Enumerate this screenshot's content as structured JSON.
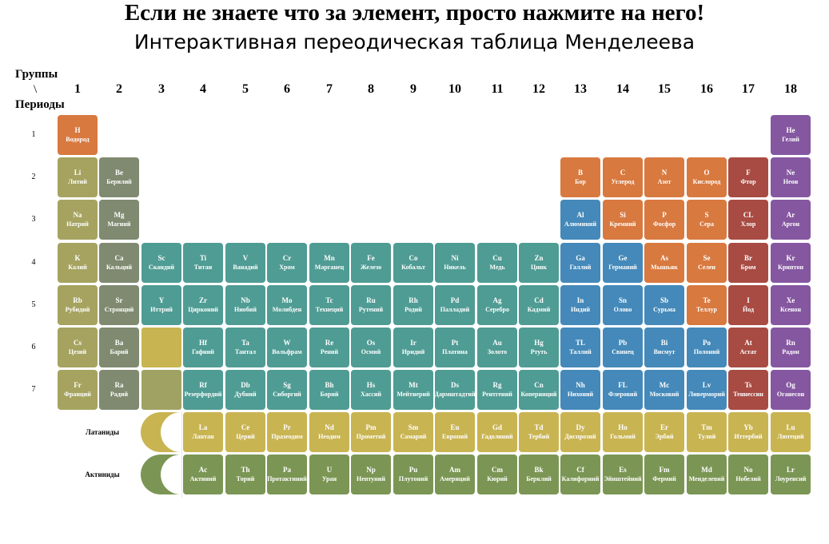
{
  "header": {
    "title": "Если не знаете что за элемент, просто нажмите на него!",
    "subtitle": "Интерактивная переодическая таблица Менделеева"
  },
  "table": {
    "corner": {
      "groups": "Группы",
      "slash": "\\",
      "periods": "Периоды"
    },
    "groups": [
      "1",
      "2",
      "3",
      "4",
      "5",
      "6",
      "7",
      "8",
      "9",
      "10",
      "11",
      "12",
      "13",
      "14",
      "15",
      "16",
      "17",
      "18"
    ],
    "periods": [
      "1",
      "2",
      "3",
      "4",
      "5",
      "6",
      "7"
    ],
    "series_labels": {
      "lanthanides": "Латаниды",
      "actinides": "Актиниды"
    }
  },
  "colors": {
    "alkali": "#a5a35f",
    "alkaline_earth": "#7f8a70",
    "transition": "#4f9c94",
    "post_transition": "#4489b9",
    "nonmetal": "#d8793f",
    "halogen": "#a84b43",
    "noble_gas": "#8557a1",
    "lanthanide": "#c9b452",
    "actinide": "#7b9654",
    "lanthanide_slot": "#c8b450",
    "actinide_slot": "#a0a264"
  },
  "elements": [
    {
      "sym": "H",
      "name": "Водород",
      "group": 1,
      "period": 1,
      "cat": "nonmetal"
    },
    {
      "sym": "He",
      "name": "Гелий",
      "group": 18,
      "period": 1,
      "cat": "noble_gas"
    },
    {
      "sym": "Li",
      "name": "Литий",
      "group": 1,
      "period": 2,
      "cat": "alkali"
    },
    {
      "sym": "Be",
      "name": "Берилий",
      "group": 2,
      "period": 2,
      "cat": "alkaline_earth"
    },
    {
      "sym": "B",
      "name": "Бор",
      "group": 13,
      "period": 2,
      "cat": "nonmetal"
    },
    {
      "sym": "C",
      "name": "Углерод",
      "group": 14,
      "period": 2,
      "cat": "nonmetal"
    },
    {
      "sym": "N",
      "name": "Азот",
      "group": 15,
      "period": 2,
      "cat": "nonmetal"
    },
    {
      "sym": "O",
      "name": "Кислород",
      "group": 16,
      "period": 2,
      "cat": "nonmetal"
    },
    {
      "sym": "F",
      "name": "Фтор",
      "group": 17,
      "period": 2,
      "cat": "halogen"
    },
    {
      "sym": "Ne",
      "name": "Неон",
      "group": 18,
      "period": 2,
      "cat": "noble_gas"
    },
    {
      "sym": "Na",
      "name": "Натрий",
      "group": 1,
      "period": 3,
      "cat": "alkali"
    },
    {
      "sym": "Mg",
      "name": "Магний",
      "group": 2,
      "period": 3,
      "cat": "alkaline_earth"
    },
    {
      "sym": "Al",
      "name": "Алюминий",
      "group": 13,
      "period": 3,
      "cat": "post_transition"
    },
    {
      "sym": "Si",
      "name": "Кремний",
      "group": 14,
      "period": 3,
      "cat": "nonmetal"
    },
    {
      "sym": "P",
      "name": "Фосфор",
      "group": 15,
      "period": 3,
      "cat": "nonmetal"
    },
    {
      "sym": "S",
      "name": "Сера",
      "group": 16,
      "period": 3,
      "cat": "nonmetal"
    },
    {
      "sym": "CL",
      "name": "Хлор",
      "group": 17,
      "period": 3,
      "cat": "halogen"
    },
    {
      "sym": "Ar",
      "name": "Аргон",
      "group": 18,
      "period": 3,
      "cat": "noble_gas"
    },
    {
      "sym": "K",
      "name": "Калий",
      "group": 1,
      "period": 4,
      "cat": "alkali"
    },
    {
      "sym": "Ca",
      "name": "Кальций",
      "group": 2,
      "period": 4,
      "cat": "alkaline_earth"
    },
    {
      "sym": "Sc",
      "name": "Скандий",
      "group": 3,
      "period": 4,
      "cat": "transition"
    },
    {
      "sym": "Ti",
      "name": "Титан",
      "group": 4,
      "period": 4,
      "cat": "transition"
    },
    {
      "sym": "V",
      "name": "Ванадий",
      "group": 5,
      "period": 4,
      "cat": "transition"
    },
    {
      "sym": "Cr",
      "name": "Хром",
      "group": 6,
      "period": 4,
      "cat": "transition"
    },
    {
      "sym": "Mn",
      "name": "Марганец",
      "group": 7,
      "period": 4,
      "cat": "transition"
    },
    {
      "sym": "Fe",
      "name": "Железо",
      "group": 8,
      "period": 4,
      "cat": "transition"
    },
    {
      "sym": "Co",
      "name": "Кобальт",
      "group": 9,
      "period": 4,
      "cat": "transition"
    },
    {
      "sym": "Ni",
      "name": "Никель",
      "group": 10,
      "period": 4,
      "cat": "transition"
    },
    {
      "sym": "Cu",
      "name": "Медь",
      "group": 11,
      "period": 4,
      "cat": "transition"
    },
    {
      "sym": "Zn",
      "name": "Цинк",
      "group": 12,
      "period": 4,
      "cat": "transition"
    },
    {
      "sym": "Ga",
      "name": "Галлий",
      "group": 13,
      "period": 4,
      "cat": "post_transition"
    },
    {
      "sym": "Ge",
      "name": "Германий",
      "group": 14,
      "period": 4,
      "cat": "post_transition"
    },
    {
      "sym": "As",
      "name": "Мышьяк",
      "group": 15,
      "period": 4,
      "cat": "nonmetal"
    },
    {
      "sym": "Se",
      "name": "Селен",
      "group": 16,
      "period": 4,
      "cat": "nonmetal"
    },
    {
      "sym": "Br",
      "name": "Бром",
      "group": 17,
      "period": 4,
      "cat": "halogen"
    },
    {
      "sym": "Kr",
      "name": "Криптон",
      "group": 18,
      "period": 4,
      "cat": "noble_gas"
    },
    {
      "sym": "Rb",
      "name": "Рубидий",
      "group": 1,
      "period": 5,
      "cat": "alkali"
    },
    {
      "sym": "Sr",
      "name": "Стронций",
      "group": 2,
      "period": 5,
      "cat": "alkaline_earth"
    },
    {
      "sym": "Y",
      "name": "Иттрий",
      "group": 3,
      "period": 5,
      "cat": "transition"
    },
    {
      "sym": "Zr",
      "name": "Цирконий",
      "group": 4,
      "period": 5,
      "cat": "transition"
    },
    {
      "sym": "Nb",
      "name": "Ниобий",
      "group": 5,
      "period": 5,
      "cat": "transition"
    },
    {
      "sym": "Mo",
      "name": "Молибден",
      "group": 6,
      "period": 5,
      "cat": "transition"
    },
    {
      "sym": "Tc",
      "name": "Технеций",
      "group": 7,
      "period": 5,
      "cat": "transition"
    },
    {
      "sym": "Ru",
      "name": "Рутений",
      "group": 8,
      "period": 5,
      "cat": "transition"
    },
    {
      "sym": "Rh",
      "name": "Родий",
      "group": 9,
      "period": 5,
      "cat": "transition"
    },
    {
      "sym": "Pd",
      "name": "Палладий",
      "group": 10,
      "period": 5,
      "cat": "transition"
    },
    {
      "sym": "Ag",
      "name": "Серебро",
      "group": 11,
      "period": 5,
      "cat": "transition"
    },
    {
      "sym": "Cd",
      "name": "Кадмий",
      "group": 12,
      "period": 5,
      "cat": "transition"
    },
    {
      "sym": "In",
      "name": "Индий",
      "group": 13,
      "period": 5,
      "cat": "post_transition"
    },
    {
      "sym": "Sn",
      "name": "Олово",
      "group": 14,
      "period": 5,
      "cat": "post_transition"
    },
    {
      "sym": "Sb",
      "name": "Сурьма",
      "group": 15,
      "period": 5,
      "cat": "post_transition"
    },
    {
      "sym": "Te",
      "name": "Теллур",
      "group": 16,
      "period": 5,
      "cat": "nonmetal"
    },
    {
      "sym": "I",
      "name": "Йод",
      "group": 17,
      "period": 5,
      "cat": "halogen"
    },
    {
      "sym": "Xe",
      "name": "Ксенон",
      "group": 18,
      "period": 5,
      "cat": "noble_gas"
    },
    {
      "sym": "Cs",
      "name": "Цезий",
      "group": 1,
      "period": 6,
      "cat": "alkali"
    },
    {
      "sym": "Ba",
      "name": "Барий",
      "group": 2,
      "period": 6,
      "cat": "alkaline_earth"
    },
    {
      "sym": "Hf",
      "name": "Гафний",
      "group": 4,
      "period": 6,
      "cat": "transition"
    },
    {
      "sym": "Ta",
      "name": "Тантал",
      "group": 5,
      "period": 6,
      "cat": "transition"
    },
    {
      "sym": "W",
      "name": "Вольфрам",
      "group": 6,
      "period": 6,
      "cat": "transition"
    },
    {
      "sym": "Re",
      "name": "Рений",
      "group": 7,
      "period": 6,
      "cat": "transition"
    },
    {
      "sym": "Os",
      "name": "Осмий",
      "group": 8,
      "period": 6,
      "cat": "transition"
    },
    {
      "sym": "Ir",
      "name": "Иридий",
      "group": 9,
      "period": 6,
      "cat": "transition"
    },
    {
      "sym": "Pt",
      "name": "Платина",
      "group": 10,
      "period": 6,
      "cat": "transition"
    },
    {
      "sym": "Au",
      "name": "Золото",
      "group": 11,
      "period": 6,
      "cat": "transition"
    },
    {
      "sym": "Hg",
      "name": "Ртуть",
      "group": 12,
      "period": 6,
      "cat": "transition"
    },
    {
      "sym": "TL",
      "name": "Таллий",
      "group": 13,
      "period": 6,
      "cat": "post_transition"
    },
    {
      "sym": "Pb",
      "name": "Свинец",
      "group": 14,
      "period": 6,
      "cat": "post_transition"
    },
    {
      "sym": "Bi",
      "name": "Висмут",
      "group": 15,
      "period": 6,
      "cat": "post_transition"
    },
    {
      "sym": "Po",
      "name": "Полоний",
      "group": 16,
      "period": 6,
      "cat": "post_transition"
    },
    {
      "sym": "At",
      "name": "Астат",
      "group": 17,
      "period": 6,
      "cat": "halogen"
    },
    {
      "sym": "Rn",
      "name": "Радон",
      "group": 18,
      "period": 6,
      "cat": "noble_gas"
    },
    {
      "sym": "Fr",
      "name": "Франций",
      "group": 1,
      "period": 7,
      "cat": "alkali"
    },
    {
      "sym": "Ra",
      "name": "Радий",
      "group": 2,
      "period": 7,
      "cat": "alkaline_earth"
    },
    {
      "sym": "Rf",
      "name": "Резерфордий",
      "group": 4,
      "period": 7,
      "cat": "transition"
    },
    {
      "sym": "Db",
      "name": "Дубний",
      "group": 5,
      "period": 7,
      "cat": "transition"
    },
    {
      "sym": "Sg",
      "name": "Сиборгий",
      "group": 6,
      "period": 7,
      "cat": "transition"
    },
    {
      "sym": "Bh",
      "name": "Борий",
      "group": 7,
      "period": 7,
      "cat": "transition"
    },
    {
      "sym": "Hs",
      "name": "Хассий",
      "group": 8,
      "period": 7,
      "cat": "transition"
    },
    {
      "sym": "Mt",
      "name": "Мейтнерий",
      "group": 9,
      "period": 7,
      "cat": "transition"
    },
    {
      "sym": "Ds",
      "name": "Дармштадтий",
      "group": 10,
      "period": 7,
      "cat": "transition"
    },
    {
      "sym": "Rg",
      "name": "Рентгений",
      "group": 11,
      "period": 7,
      "cat": "transition"
    },
    {
      "sym": "Cn",
      "name": "Коперниций",
      "group": 12,
      "period": 7,
      "cat": "transition"
    },
    {
      "sym": "Nh",
      "name": "Нихоний",
      "group": 13,
      "period": 7,
      "cat": "post_transition"
    },
    {
      "sym": "FL",
      "name": "Флеровий",
      "group": 14,
      "period": 7,
      "cat": "post_transition"
    },
    {
      "sym": "Mc",
      "name": "Московий",
      "group": 15,
      "period": 7,
      "cat": "post_transition"
    },
    {
      "sym": "Lv",
      "name": "Ливерморий",
      "group": 16,
      "period": 7,
      "cat": "post_transition"
    },
    {
      "sym": "Ts",
      "name": "Теннессин",
      "group": 17,
      "period": 7,
      "cat": "halogen"
    },
    {
      "sym": "Og",
      "name": "Оганесон",
      "group": 18,
      "period": 7,
      "cat": "noble_gas"
    }
  ],
  "lanthanides": [
    {
      "sym": "La",
      "name": "Лантан"
    },
    {
      "sym": "Ce",
      "name": "Церий"
    },
    {
      "sym": "Pr",
      "name": "Празеодим"
    },
    {
      "sym": "Nd",
      "name": "Неодим"
    },
    {
      "sym": "Pm",
      "name": "Прометий"
    },
    {
      "sym": "Sm",
      "name": "Самарий"
    },
    {
      "sym": "Eu",
      "name": "Европий"
    },
    {
      "sym": "Gd",
      "name": "Гадолиний"
    },
    {
      "sym": "Td",
      "name": "Тербий"
    },
    {
      "sym": "Dy",
      "name": "Диспрозий"
    },
    {
      "sym": "Ho",
      "name": "Гольмий"
    },
    {
      "sym": "Er",
      "name": "Эрбий"
    },
    {
      "sym": "Tm",
      "name": "Тулий"
    },
    {
      "sym": "Yb",
      "name": "Иттербий"
    },
    {
      "sym": "Lu",
      "name": "Лютеций"
    }
  ],
  "actinides": [
    {
      "sym": "Ac",
      "name": "Актиний"
    },
    {
      "sym": "Th",
      "name": "Торий"
    },
    {
      "sym": "Pa",
      "name": "Протактиний"
    },
    {
      "sym": "U",
      "name": "Уран"
    },
    {
      "sym": "Np",
      "name": "Нептуний"
    },
    {
      "sym": "Pu",
      "name": "Плутоний"
    },
    {
      "sym": "Am",
      "name": "Америций"
    },
    {
      "sym": "Cm",
      "name": "Кюрий"
    },
    {
      "sym": "Bk",
      "name": "Берклий"
    },
    {
      "sym": "Cf",
      "name": "Калифорний"
    },
    {
      "sym": "Es",
      "name": "Эйнштейний"
    },
    {
      "sym": "Fm",
      "name": "Фермий"
    },
    {
      "sym": "Md",
      "name": "Менделевий"
    },
    {
      "sym": "No",
      "name": "Нобелий"
    },
    {
      "sym": "Lr",
      "name": "Лоуренсий"
    }
  ]
}
